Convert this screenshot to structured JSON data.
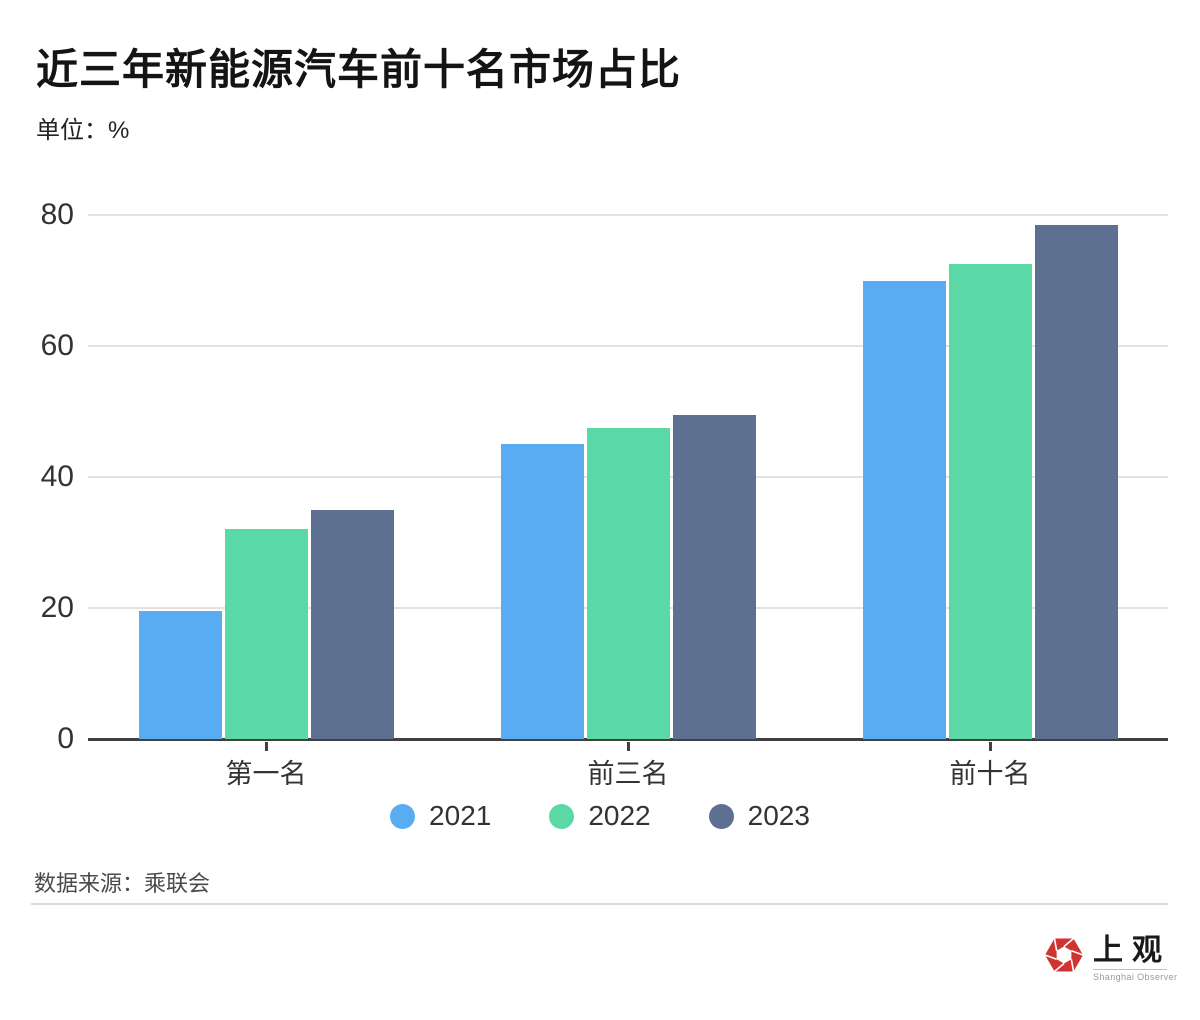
{
  "header": {
    "title": "近三年新能源汽车前十名市场占比",
    "unit": "单位：%"
  },
  "chart_data": {
    "type": "bar",
    "title": "近三年新能源汽车前十名市场占比",
    "ylabel": "单位：%",
    "categories": [
      "第一名",
      "前三名",
      "前十名"
    ],
    "series": [
      {
        "name": "2021",
        "color": "#5AACF2",
        "values": [
          19.5,
          45.0,
          70.0
        ]
      },
      {
        "name": "2022",
        "color": "#5AD8A6",
        "values": [
          32.0,
          47.5,
          72.5
        ]
      },
      {
        "name": "2023",
        "color": "#5D7092",
        "values": [
          35.0,
          49.5,
          78.5
        ]
      }
    ],
    "ylim": [
      0,
      80
    ],
    "yticks": [
      0,
      20,
      40,
      60,
      80
    ],
    "grid": true,
    "legend_position": "bottom"
  },
  "footer": {
    "source": "数据来源：乘联会",
    "logo": {
      "name": "上观",
      "subtitle": "Shanghai Observer",
      "icon": "aperture-hexagon-icon",
      "brand_color": "#D03431"
    }
  },
  "colors": {
    "series_2021": "#5AACF2",
    "series_2022": "#5AD8A6",
    "series_2023": "#5D7092",
    "gridline": "#e2e2e2",
    "axis": "#404040",
    "text": "#333333"
  }
}
